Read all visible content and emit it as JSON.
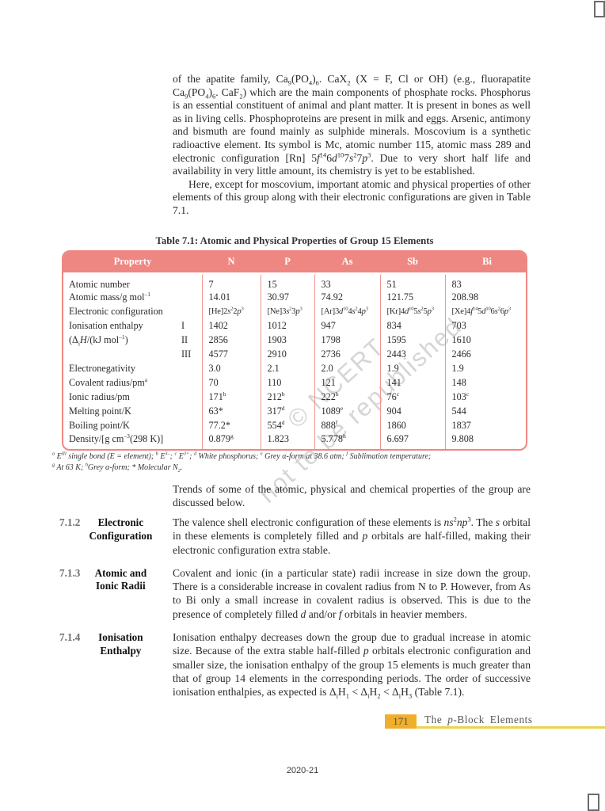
{
  "page": {
    "watermark_line1": "© NCERT",
    "watermark_line2": "not to be republished",
    "footer_page_number": "171",
    "footer_chapter": "The ~{p}-Block Elements",
    "footer_year": "2020-21"
  },
  "colors": {
    "table_header_bg": "#ee8781",
    "table_border": "#ee8781",
    "footer_line_yellow": "#e9d44f",
    "page_number_orange": "#f1ae2b",
    "section_number_gray": "#6d6e71"
  },
  "intro": {
    "para1": "of the apatite family, Ca_{9}(PO_{4})_{6}. CaX_{2} (X = F, Cl or OH) (e.g., fluorapatite Ca_{9}(PO_{4})_{6}. CaF_{2}) which are the main components of phosphate rocks. Phosphorus is an essential constituent of animal and plant matter. It is present in bones as well as in living cells. Phosphoproteins are present in milk and eggs. Arsenic, antimony and bismuth are found mainly as sulphide minerals. Moscovium is a synthetic radioactive element. Its symbol is Mc, atomic number 115, atomic mass 289 and electronic configuration [Rn] 5~{f}^{14}6~{d}^{10}7~{s}^{2}7~{p}^{3}. Due to very short half life and availability in very little amount, its chemistry is yet to be established.",
    "para2": "Here, except for moscovium, important atomic and physical properties of other elements of this group along with their electronic configurations are given in Table 7.1."
  },
  "table": {
    "title": "Table 7.1: Atomic and Physical Properties of Group 15 Elements",
    "headers": [
      "Property",
      "N",
      "P",
      "As",
      "Sb",
      "Bi"
    ],
    "rows": [
      {
        "label": "Atomic number",
        "sub": "",
        "values": [
          "7",
          "15",
          "33",
          "51",
          "83"
        ]
      },
      {
        "label": "Atomic mass/g mol^{–1}",
        "sub": "",
        "values": [
          "14.01",
          "30.97",
          "74.92",
          "121.75",
          "208.98"
        ]
      },
      {
        "label": "Electronic configuration",
        "sub": "",
        "compact": true,
        "values": [
          "[He]2~{s}^{2}2~{p}^{3}",
          "[Ne]3~{s}^{2}3~{p}^{3}",
          "[Ar]3~{d}^{10}4~{s}^{2}4~{p}^{3}",
          "[Kr]4~{d}^{10}5~{s}^{2}5~{p}^{3}",
          "[Xe]4~{f}^{14}5~{d}^{10}6~{s}^{2}6~{p}^{3}"
        ]
      },
      {
        "label": "Ionisation enthalpy",
        "sub": "I",
        "values": [
          "1402",
          "1012",
          "947",
          "834",
          "703"
        ]
      },
      {
        "label": "(Δ_{i}~{H}/(kJ mol^{–1})",
        "sub": "II",
        "values": [
          "2856",
          "1903",
          "1798",
          "1595",
          "1610"
        ]
      },
      {
        "label": "",
        "sub": "III",
        "values": [
          "4577",
          "2910",
          "2736",
          "2443",
          "2466"
        ]
      },
      {
        "label": "Electronegativity",
        "sub": "",
        "values": [
          "3.0",
          "2.1",
          "2.0",
          "1.9",
          "1.9"
        ]
      },
      {
        "label": "Covalent radius/pm^{a}",
        "sub": "",
        "values": [
          "70",
          "110",
          "121",
          "141",
          "148"
        ]
      },
      {
        "label": "Ionic radius/pm",
        "sub": "",
        "values": [
          "171^{b}",
          "212^{b}",
          "222^{b}",
          "76^{c}",
          "103^{c}"
        ]
      },
      {
        "label": "Melting point/K",
        "sub": "",
        "values": [
          "63*",
          "317^{d}",
          "1089^{e}",
          "904",
          "544"
        ]
      },
      {
        "label": "Boiling point/K",
        "sub": "",
        "values": [
          "77.2*",
          "554^{d}",
          "888^{f}",
          "1860",
          "1837"
        ]
      },
      {
        "label": "Density/[g cm^{–3}(298 K)]",
        "sub": "",
        "values": [
          "0.879^{g}",
          "1.823",
          "5.778^{h}",
          "6.697",
          "9.808"
        ]
      }
    ],
    "footnotes": [
      "^{a} E^{III} single bond (E = element); ^{b} E^{3–}; ^{c} E^{3+}; ^{d} White phosphorus; ^{e} Grey α-form at 38.6 atm; ^{f} Sublimation temperature;",
      "^{g} At 63 K; ^{h}Grey α-form; * Molecular N_{2}."
    ]
  },
  "trends_para": "Trends of some of the atomic, physical and chemical properties of the group are discussed below.",
  "sections": [
    {
      "number": "7.1.2",
      "title": "Electronic Configuration",
      "body": "The valence shell electronic configuration of these elements is ~{ns}^{2}~{np}^{3}. The ~{s} orbital in these elements is completely filled and ~{p} orbitals are half-filled, making their electronic configuration extra stable."
    },
    {
      "number": "7.1.3",
      "title": "Atomic and Ionic Radii",
      "body": "Covalent and ionic (in a particular state) radii increase in size down the group. There is a considerable increase in covalent radius from N to P. However, from As to Bi only a small increase in covalent radius is observed. This is due to the presence of completely filled ~{d} and/or ~{f} orbitals in heavier members."
    },
    {
      "number": "7.1.4",
      "title": "Ionisation Enthalpy",
      "body": "Ionisation enthalpy decreases down the group due to gradual increase in atomic size. Because of the extra stable half-filled ~{p} orbitals electronic configuration and smaller size, the ionisation enthalpy of the group 15 elements is much greater than that of group 14 elements in the corresponding periods. The order of successive ionisation enthalpies, as expected is Δ_{i}H_{1} < Δ_{i}H_{2} < Δ_{i}H_{3} (Table 7.1)."
    }
  ]
}
